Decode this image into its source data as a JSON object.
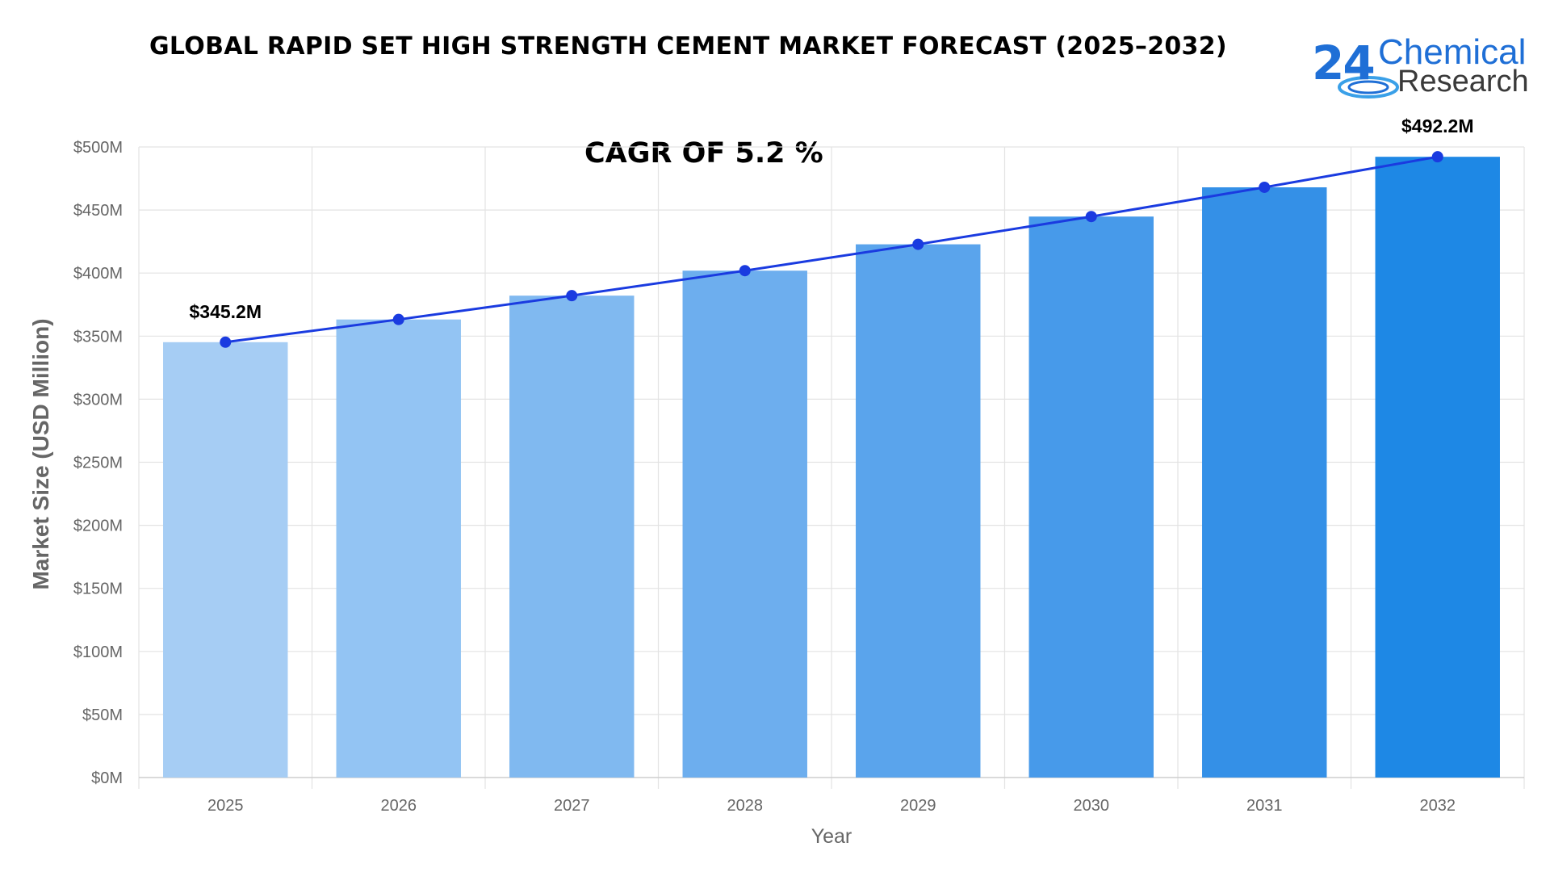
{
  "chart_data": {
    "type": "bar",
    "title": "GLOBAL RAPID SET HIGH STRENGTH CEMENT MARKET FORECAST (2025–2032)",
    "annotation": "CAGR OF 5.2 %",
    "xlabel": "Year",
    "ylabel": "Market Size (USD Million)",
    "categories": [
      "2025",
      "2026",
      "2027",
      "2028",
      "2029",
      "2030",
      "2031",
      "2032"
    ],
    "values": [
      345.2,
      363.2,
      382.1,
      401.9,
      422.8,
      444.8,
      468.0,
      492.2
    ],
    "line_overlay": true,
    "ylim": [
      0,
      500
    ],
    "yticks": [
      0,
      50,
      100,
      150,
      200,
      250,
      300,
      350,
      400,
      450,
      500
    ],
    "ytick_labels": [
      "$0M",
      "$50M",
      "$100M",
      "$150M",
      "$200M",
      "$250M",
      "$300M",
      "$350M",
      "$400M",
      "$450M",
      "$500M"
    ],
    "data_labels": [
      {
        "category": "2025",
        "text": "$345.2M"
      },
      {
        "category": "2032",
        "text": "$492.2M"
      }
    ],
    "grid": true,
    "legend": "none",
    "colors": {
      "bars": [
        "#a6cdf4",
        "#93c4f3",
        "#80b9f0",
        "#6daeee",
        "#5aa4ec",
        "#479aea",
        "#3490e7",
        "#1e88e5"
      ],
      "line": "#1a3be0",
      "markers": "#1a3be0",
      "grid": "#e3e3e3"
    }
  },
  "logo": {
    "number": "24",
    "line1": "Chemical",
    "line2": "Research"
  }
}
